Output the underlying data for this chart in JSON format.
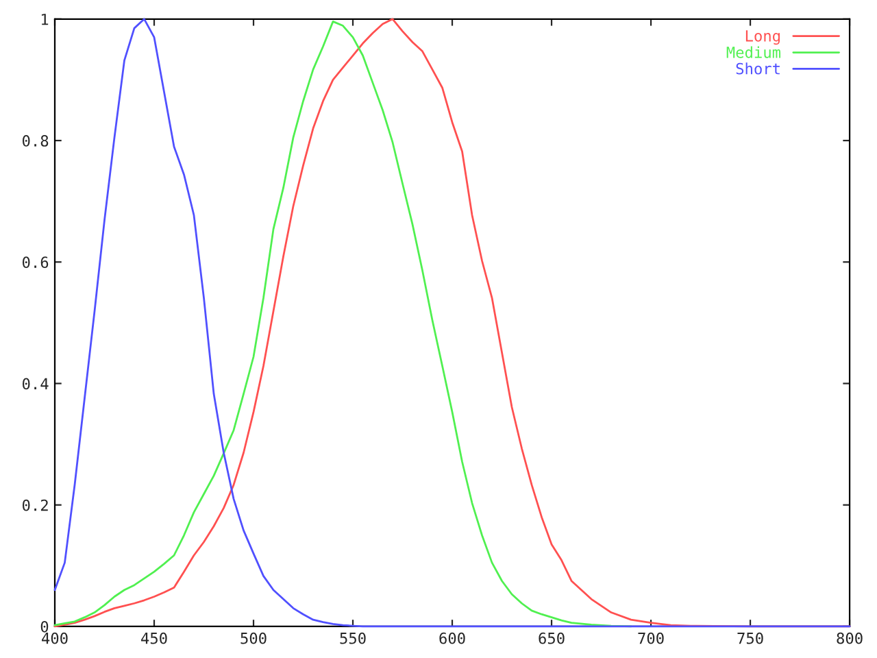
{
  "chart_data": {
    "type": "line",
    "x": [
      400,
      405,
      410,
      415,
      420,
      425,
      430,
      435,
      440,
      445,
      450,
      455,
      460,
      465,
      470,
      475,
      480,
      485,
      490,
      495,
      500,
      505,
      510,
      515,
      520,
      525,
      530,
      535,
      540,
      545,
      550,
      555,
      560,
      565,
      570,
      575,
      580,
      585,
      590,
      595,
      600,
      605,
      610,
      615,
      620,
      625,
      630,
      635,
      640,
      645,
      650,
      655,
      660,
      670,
      680,
      690,
      700,
      710,
      720,
      750,
      800
    ],
    "series": [
      {
        "name": "Long",
        "color": "#ff5050",
        "values": [
          0.0,
          0.003,
          0.006,
          0.011,
          0.017,
          0.024,
          0.03,
          0.034,
          0.038,
          0.043,
          0.049,
          0.056,
          0.064,
          0.09,
          0.117,
          0.139,
          0.165,
          0.195,
          0.233,
          0.286,
          0.353,
          0.429,
          0.519,
          0.609,
          0.692,
          0.759,
          0.82,
          0.865,
          0.9,
          0.92,
          0.94,
          0.96,
          0.977,
          0.992,
          1.0,
          0.98,
          0.962,
          0.947,
          0.917,
          0.887,
          0.83,
          0.782,
          0.677,
          0.602,
          0.541,
          0.451,
          0.361,
          0.293,
          0.233,
          0.18,
          0.135,
          0.109,
          0.075,
          0.045,
          0.023,
          0.011,
          0.006,
          0.002,
          0.001,
          0.0,
          0.0
        ]
      },
      {
        "name": "Medium",
        "color": "#50f050",
        "values": [
          0.002,
          0.005,
          0.008,
          0.015,
          0.023,
          0.035,
          0.049,
          0.06,
          0.068,
          0.079,
          0.09,
          0.103,
          0.117,
          0.15,
          0.188,
          0.218,
          0.248,
          0.285,
          0.323,
          0.383,
          0.444,
          0.541,
          0.654,
          0.722,
          0.805,
          0.865,
          0.917,
          0.955,
          0.996,
          0.989,
          0.97,
          0.94,
          0.895,
          0.85,
          0.797,
          0.729,
          0.662,
          0.586,
          0.504,
          0.429,
          0.353,
          0.271,
          0.203,
          0.15,
          0.105,
          0.075,
          0.053,
          0.038,
          0.026,
          0.02,
          0.015,
          0.01,
          0.006,
          0.003,
          0.001,
          0.0,
          null,
          null,
          null,
          null,
          null
        ]
      },
      {
        "name": "Short",
        "color": "#5050ff",
        "values": [
          0.06,
          0.105,
          0.233,
          0.376,
          0.519,
          0.669,
          0.805,
          0.932,
          0.985,
          1.0,
          0.97,
          0.88,
          0.79,
          0.744,
          0.677,
          0.541,
          0.383,
          0.286,
          0.21,
          0.158,
          0.12,
          0.083,
          0.06,
          0.045,
          0.03,
          0.02,
          0.011,
          0.007,
          0.004,
          0.002,
          0.001,
          0.0,
          0.0,
          0.0,
          0.0,
          0.0,
          0.0,
          0.0,
          0.0,
          0.0,
          0.0,
          0.0,
          0.0,
          0.0,
          0.0,
          0.0,
          0.0,
          0.0,
          0.0,
          0.0,
          0.0,
          0.0,
          0.0,
          0.0,
          0.0,
          0.0,
          0.0,
          0.0,
          0.0,
          0.0,
          0.0
        ]
      }
    ],
    "xlim": [
      400,
      800
    ],
    "xticks": [
      400,
      450,
      500,
      550,
      600,
      650,
      700,
      750,
      800
    ],
    "ylim": [
      0,
      1
    ],
    "yticks": [
      0,
      0.2,
      0.4,
      0.6,
      0.8,
      1
    ],
    "grid": false,
    "legend": "top right",
    "marker": "none",
    "line_style": "solid"
  }
}
